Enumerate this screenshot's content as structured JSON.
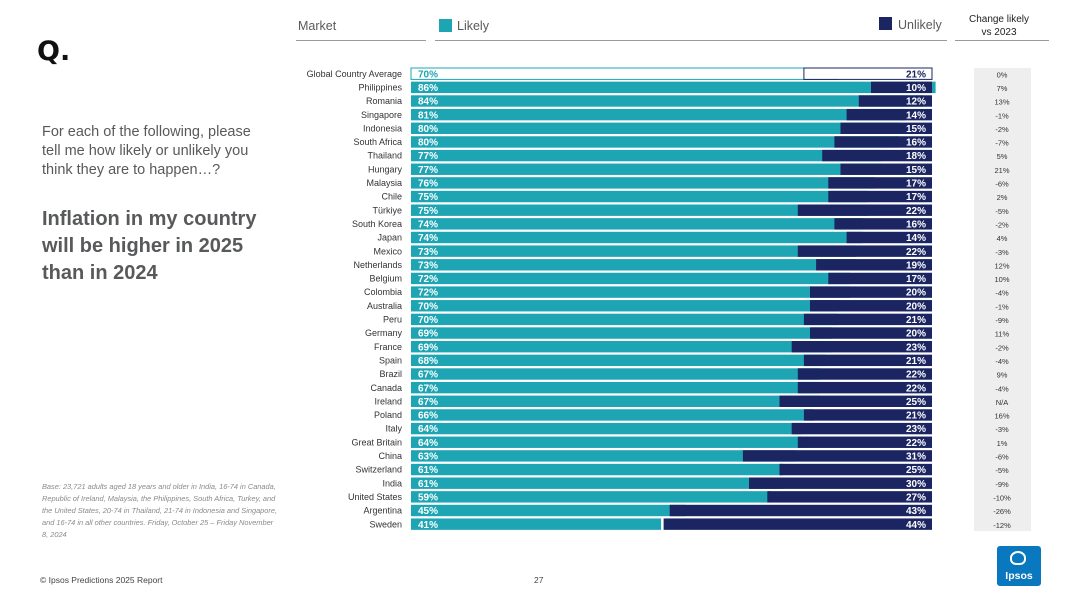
{
  "slide": {
    "q_mark": "Q.",
    "intro": "For each of the following, please tell me how likely or unlikely you think they are to happen…?",
    "headline": "Inflation in my country will be higher in 2025 than in 2024",
    "base_note": "Base: 23,721 adults aged 18 years and older in India, 16-74 in Canada, Republic of Ireland, Malaysia, the Philippines, South Africa, Turkey, and the United States, 20-74 in Thailand, 21-74 in Indonesia and Singapore, and 16-74 in all other countries. Friday, October 25 – Friday November 8, 2024",
    "footer_left": "© Ipsos Predictions 2025 Report",
    "page_number": "27",
    "logo_text": "Ipsos"
  },
  "colors": {
    "likely": "#1ea5b4",
    "unlikely": "#1b2561",
    "logo": "#0a78be",
    "change_bg": "#eeeeee"
  },
  "chart_data": {
    "type": "bar",
    "title": "Inflation in my country will be higher in 2025 than in 2024",
    "column_header": "Market",
    "change_header": "Change likely vs 2023",
    "series": [
      {
        "name": "Likely",
        "values": [
          70,
          86,
          84,
          81,
          80,
          80,
          77,
          77,
          76,
          75,
          75,
          74,
          74,
          73,
          73,
          72,
          72,
          70,
          70,
          69,
          69,
          68,
          67,
          67,
          67,
          66,
          64,
          64,
          63,
          61,
          61,
          59,
          45,
          41
        ]
      },
      {
        "name": "Unlikely",
        "values": [
          21,
          10,
          12,
          14,
          15,
          16,
          18,
          15,
          17,
          17,
          22,
          16,
          14,
          22,
          19,
          17,
          20,
          20,
          21,
          20,
          23,
          21,
          22,
          22,
          25,
          21,
          23,
          22,
          31,
          25,
          30,
          27,
          43,
          44
        ]
      }
    ],
    "categories": [
      "Global Country Average",
      "Philippines",
      "Romania",
      "Singapore",
      "Indonesia",
      "South Africa",
      "Thailand",
      "Hungary",
      "Malaysia",
      "Chile",
      "Türkiye",
      "South Korea",
      "Japan",
      "Mexico",
      "Netherlands",
      "Belgium",
      "Colombia",
      "Australia",
      "Peru",
      "Germany",
      "France",
      "Spain",
      "Brazil",
      "Canada",
      "Ireland",
      "Poland",
      "Italy",
      "Great Britain",
      "China",
      "Switzerland",
      "India",
      "United States",
      "Argentina",
      "Sweden"
    ],
    "change_vs_2023": [
      "0%",
      "7%",
      "13%",
      "-1%",
      "-2%",
      "-7%",
      "5%",
      "21%",
      "-6%",
      "2%",
      "-5%",
      "-2%",
      "4%",
      "-3%",
      "12%",
      "10%",
      "-4%",
      "-1%",
      "-9%",
      "11%",
      "-2%",
      "-4%",
      "9%",
      "-4%",
      "N/A",
      "16%",
      "-3%",
      "1%",
      "-6%",
      "-5%",
      "-9%",
      "-10%",
      "-26%",
      "-12%"
    ],
    "xlim": [
      0,
      100
    ],
    "legend_position": "top",
    "grid": false
  }
}
